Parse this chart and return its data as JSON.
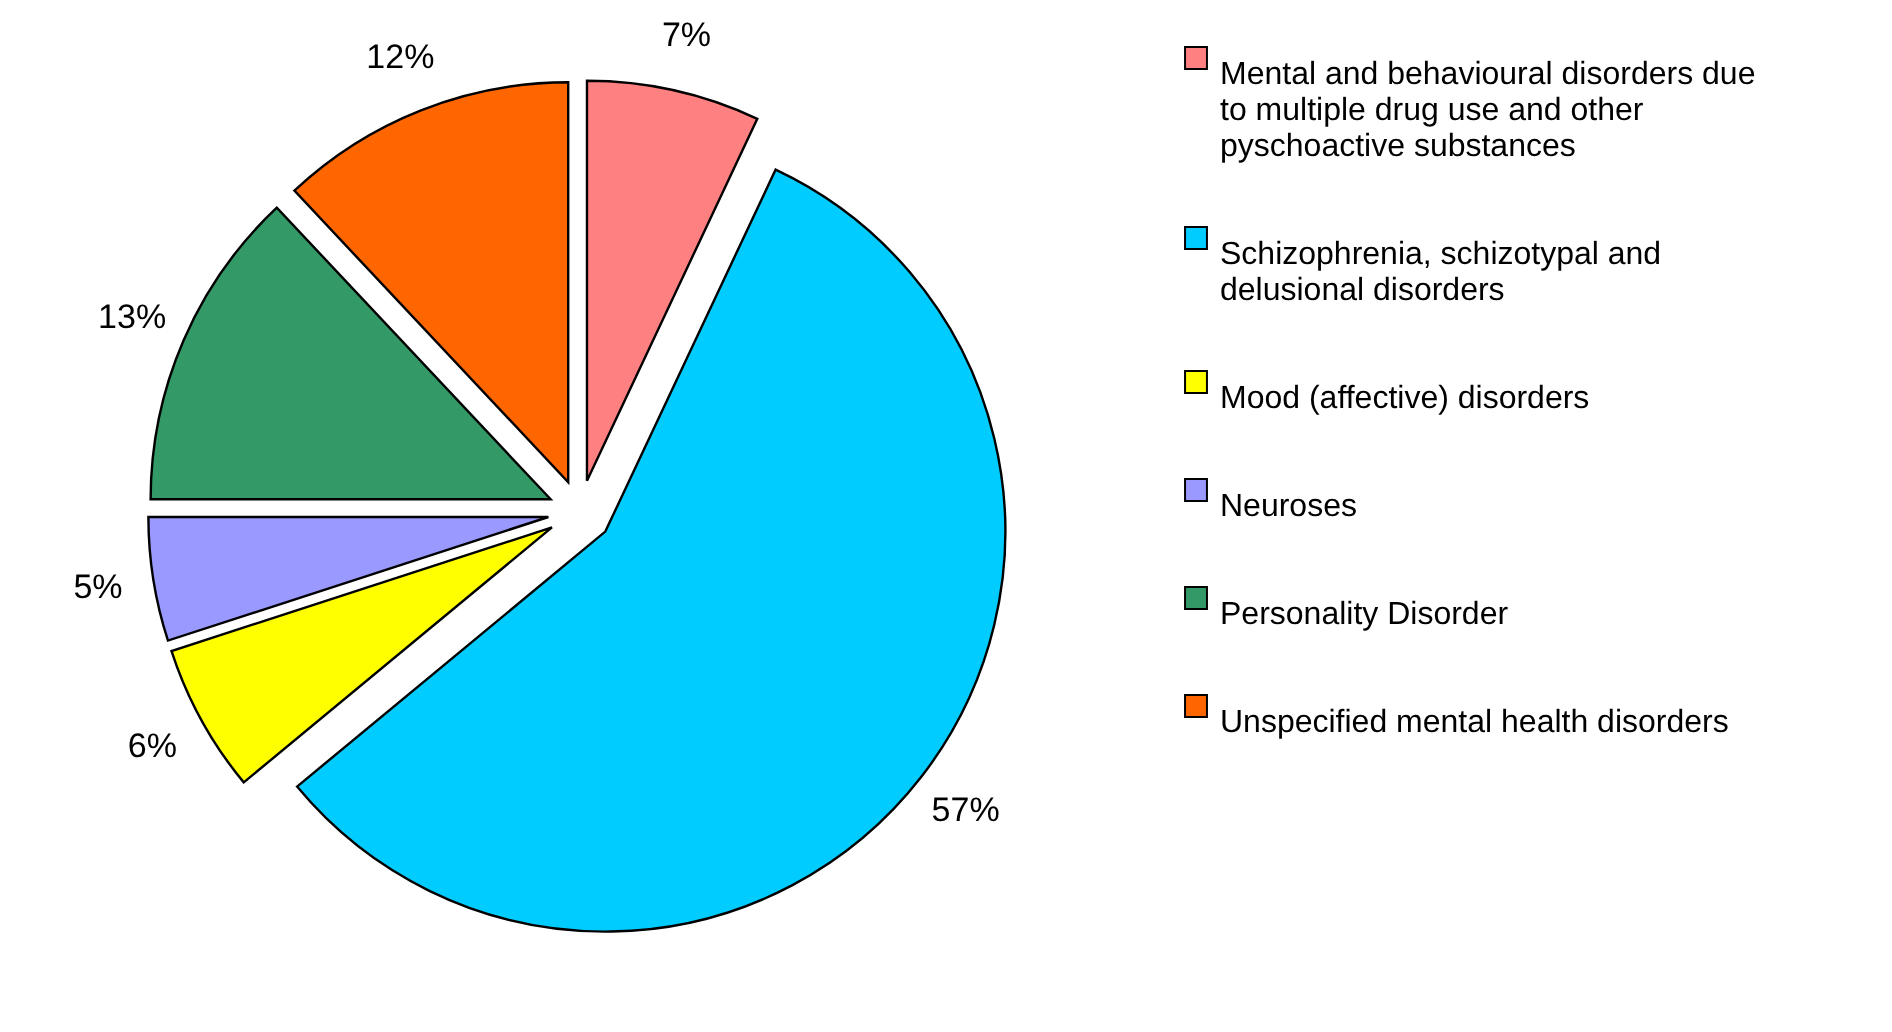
{
  "chart_data": {
    "type": "pie",
    "categories": [
      "Mental and behavioural disorders due to multiple drug use and other pyschoactive substances",
      "Schizophrenia, schizotypal and delusional disorders",
      "Mood (affective) disorders",
      "Neuroses",
      "Personality Disorder",
      "Unspecified mental health disorders"
    ],
    "values": [
      7,
      57,
      6,
      5,
      13,
      12
    ],
    "colors": [
      "#ff8080",
      "#00ccff",
      "#ffff00",
      "#9999ff",
      "#339966",
      "#ff6600"
    ],
    "value_labels": [
      "7%",
      "57%",
      "6%",
      "5%",
      "13%",
      "12%"
    ],
    "legend": "right"
  }
}
